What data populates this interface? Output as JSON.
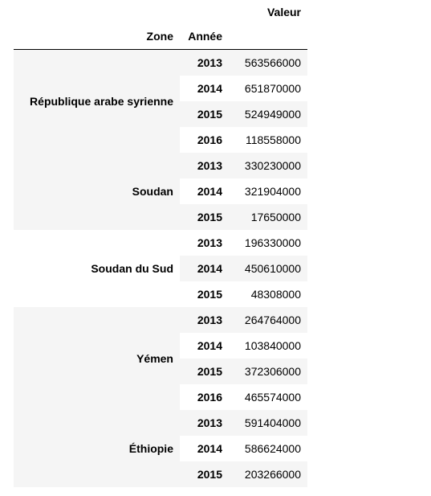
{
  "table": {
    "columns": {
      "value": "Valeur",
      "zone": "Zone",
      "year": "Année"
    },
    "groups": [
      {
        "zone": "République arabe syrienne",
        "rows": [
          {
            "year": "2013",
            "value": "563566000"
          },
          {
            "year": "2014",
            "value": "651870000"
          },
          {
            "year": "2015",
            "value": "524949000"
          },
          {
            "year": "2016",
            "value": "118558000"
          }
        ]
      },
      {
        "zone": "Soudan",
        "rows": [
          {
            "year": "2013",
            "value": "330230000"
          },
          {
            "year": "2014",
            "value": "321904000"
          },
          {
            "year": "2015",
            "value": "17650000"
          }
        ]
      },
      {
        "zone": "Soudan du Sud",
        "rows": [
          {
            "year": "2013",
            "value": "196330000"
          },
          {
            "year": "2014",
            "value": "450610000"
          },
          {
            "year": "2015",
            "value": "48308000"
          }
        ]
      },
      {
        "zone": "Yémen",
        "rows": [
          {
            "year": "2013",
            "value": "264764000"
          },
          {
            "year": "2014",
            "value": "103840000"
          },
          {
            "year": "2015",
            "value": "372306000"
          },
          {
            "year": "2016",
            "value": "465574000"
          }
        ]
      },
      {
        "zone": "Éthiopie",
        "rows": [
          {
            "year": "2013",
            "value": "591404000"
          },
          {
            "year": "2014",
            "value": "586624000"
          },
          {
            "year": "2015",
            "value": "203266000"
          }
        ]
      }
    ]
  }
}
